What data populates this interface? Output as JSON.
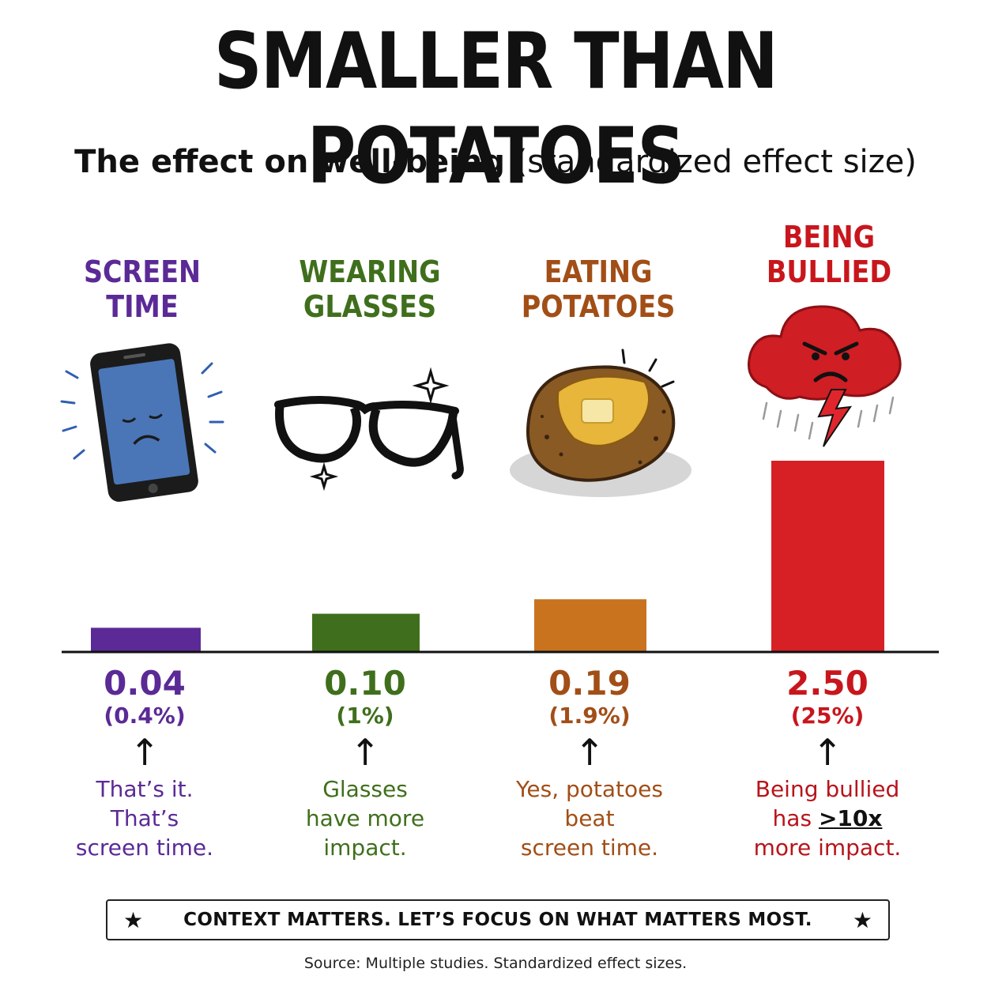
{
  "title": "SMALLER THAN POTATOES",
  "subtitle_bold": "The effect on well-being",
  "subtitle_rest": " (standardized effect size)",
  "colors": {
    "screen_time": "#5b2a96",
    "glasses": "#3f6f1c",
    "potatoes": "#c9731f",
    "bullied": "#d71f26"
  },
  "icons": [
    "sad-phone-icon",
    "glasses-icon",
    "baked-potato-icon",
    "angry-storm-cloud-icon"
  ],
  "chart_data": {
    "type": "bar",
    "title": "SMALLER THAN POTATOES",
    "subtitle": "The effect on well-being (standardized effect size)",
    "categories": [
      "SCREEN TIME",
      "WEARING GLASSES",
      "EATING POTATOES",
      "BEING BULLIED"
    ],
    "values": [
      0.04,
      0.1,
      0.19,
      2.5
    ],
    "value_labels": [
      "0.04",
      "0.10",
      "0.19",
      "2.50"
    ],
    "percent_labels": [
      "(0.4%)",
      "(1%)",
      "(1.9%)",
      "(25%)"
    ],
    "ylim": [
      0,
      2.5
    ],
    "grid": false
  },
  "columns": [
    {
      "label_line1": "SCREEN",
      "label_line2": "TIME",
      "value": "0.04",
      "percent": "(0.4%)",
      "note1": "That’s it.",
      "note2": "That’s",
      "note3": "screen time.",
      "note_strong": ""
    },
    {
      "label_line1": "WEARING",
      "label_line2": "GLASSES",
      "value": "0.10",
      "percent": "(1%)",
      "note1": "Glasses",
      "note2": "have more",
      "note3": "impact.",
      "note_strong": ""
    },
    {
      "label_line1": "EATING",
      "label_line2": "POTATOES",
      "value": "0.19",
      "percent": "(1.9%)",
      "note1": "Yes, potatoes",
      "note2": "beat",
      "note3": "screen time.",
      "note_strong": ""
    },
    {
      "label_line1": "BEING",
      "label_line2": "BULLIED",
      "value": "2.50",
      "percent": "(25%)",
      "note1": "Being bullied",
      "note2": "has ",
      "note_strong": ">10x",
      "note3": "more impact."
    }
  ],
  "arrow_glyph": "↑",
  "banner": {
    "star": "★",
    "text": "CONTEXT MATTERS. LET’S FOCUS ON WHAT MATTERS MOST."
  },
  "source": "Source: Multiple studies. Standardized effect sizes."
}
